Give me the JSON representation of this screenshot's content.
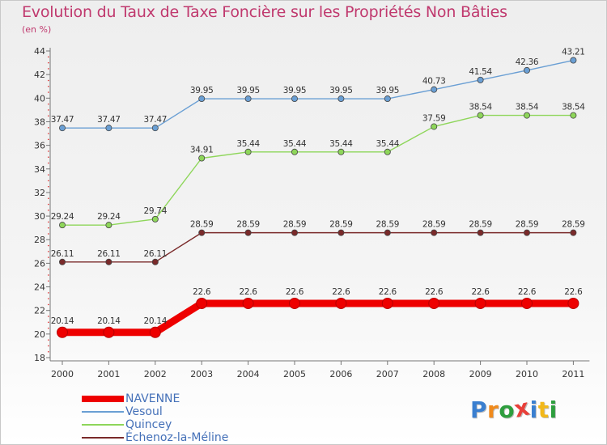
{
  "header": {
    "title": "Evolution du Taux de Taxe Foncière sur les Propriétés Non Bâties",
    "unit": "(en %)"
  },
  "brand": {
    "letters": [
      {
        "ch": "P",
        "color": "#3a7fd0"
      },
      {
        "ch": "r",
        "color": "#f08a1c"
      },
      {
        "ch": "o",
        "color": "#2e9e3e"
      },
      {
        "ch": "x",
        "color": "#e8403a"
      },
      {
        "ch": "i",
        "color": "#3a7fd0"
      },
      {
        "ch": "t",
        "color": "#f2b81a"
      },
      {
        "ch": "i",
        "color": "#2e9e3e"
      }
    ]
  },
  "chart_data": {
    "type": "line",
    "title": "Evolution du Taux de Taxe Foncière sur les Propriétés Non Bâties",
    "ylabel": "(en %)",
    "xlabel": "",
    "categories": [
      "2000",
      "2001",
      "2002",
      "2003",
      "2004",
      "2005",
      "2006",
      "2007",
      "2008",
      "2009",
      "2010",
      "2011"
    ],
    "ylim": [
      18,
      44
    ],
    "yticks": [
      18,
      20,
      22,
      24,
      26,
      28,
      30,
      32,
      34,
      36,
      38,
      40,
      42,
      44
    ],
    "grid": false,
    "legend_position": "bottom-left",
    "series": [
      {
        "name": "NAVENNE",
        "color": "#ee0000",
        "values": [
          20.14,
          20.14,
          20.14,
          22.6,
          22.6,
          22.6,
          22.6,
          22.6,
          22.6,
          22.6,
          22.6,
          22.6
        ],
        "labels": [
          "20.14",
          "20.14",
          "20.14",
          "22.6",
          "22.6",
          "22.6",
          "22.6",
          "22.6",
          "22.6",
          "22.6",
          "22.6",
          "22.6"
        ],
        "emphasis": "thick"
      },
      {
        "name": "Vesoul",
        "color": "#6a9fd4",
        "values": [
          37.47,
          37.47,
          37.47,
          39.95,
          39.95,
          39.95,
          39.95,
          39.95,
          40.73,
          41.54,
          42.36,
          43.21
        ],
        "labels": [
          "37.47",
          "37.47",
          "37.47",
          "39.95",
          "39.95",
          "39.95",
          "39.95",
          "39.95",
          "40.73",
          "41.54",
          "42.36",
          "43.21"
        ],
        "emphasis": "thin"
      },
      {
        "name": "Quincey",
        "color": "#8ed65a",
        "values": [
          29.24,
          29.24,
          29.74,
          34.91,
          35.44,
          35.44,
          35.44,
          35.44,
          37.59,
          38.54,
          38.54,
          38.54
        ],
        "labels": [
          "29.24",
          "29.24",
          "29.74",
          "34.91",
          "35.44",
          "35.44",
          "35.44",
          "35.44",
          "37.59",
          "38.54",
          "38.54",
          "38.54"
        ],
        "emphasis": "thin"
      },
      {
        "name": "Échenoz-la-Méline",
        "color": "#7a2a2a",
        "values": [
          26.11,
          26.11,
          26.11,
          28.59,
          28.59,
          28.59,
          28.59,
          28.59,
          28.59,
          28.59,
          28.59,
          28.59
        ],
        "labels": [
          "26.11",
          "26.11",
          "26.11",
          "28.59",
          "28.59",
          "28.59",
          "28.59",
          "28.59",
          "28.59",
          "28.59",
          "28.59",
          "28.59"
        ],
        "emphasis": "thin"
      }
    ]
  }
}
